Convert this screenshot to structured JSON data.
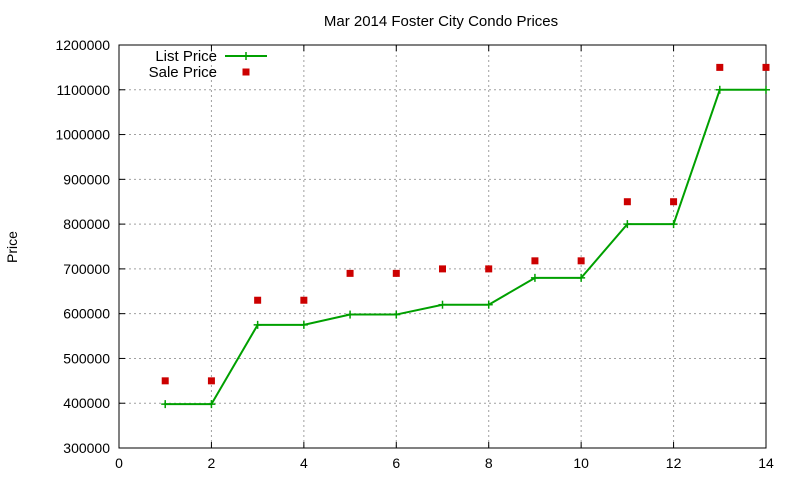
{
  "chart_data": {
    "type": "line",
    "title": "Mar 2014 Foster City Condo Prices",
    "xlabel": "",
    "ylabel": "Price",
    "xlim": [
      0,
      14
    ],
    "ylim": [
      300000,
      1200000
    ],
    "xticks": [
      0,
      2,
      4,
      6,
      8,
      10,
      12,
      14
    ],
    "yticks": [
      300000,
      400000,
      500000,
      600000,
      700000,
      800000,
      900000,
      1000000,
      1100000,
      1200000
    ],
    "grid": true,
    "legend_position": "top-left",
    "series": [
      {
        "name": "List Price",
        "style": "linespoints",
        "marker": "plus",
        "color": "#00a000",
        "x": [
          1,
          2,
          3,
          4,
          5,
          6,
          7,
          8,
          9,
          10,
          11,
          12,
          13,
          14
        ],
        "values": [
          398000,
          398000,
          575000,
          575000,
          598000,
          598000,
          620000,
          620000,
          680000,
          680000,
          800000,
          800000,
          1100000,
          1100000
        ]
      },
      {
        "name": "Sale Price",
        "style": "points",
        "marker": "square",
        "color": "#cc0000",
        "x": [
          1,
          2,
          3,
          4,
          5,
          6,
          7,
          8,
          9,
          10,
          11,
          12,
          13,
          14
        ],
        "values": [
          450000,
          450000,
          630000,
          630000,
          690000,
          690000,
          700000,
          700000,
          718000,
          718000,
          850000,
          850000,
          1150000,
          1150000
        ]
      }
    ]
  }
}
